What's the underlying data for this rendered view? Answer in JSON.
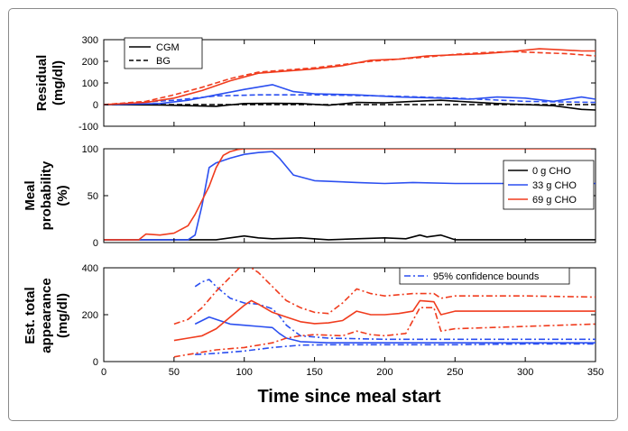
{
  "chart_data": {
    "type": "line",
    "xlabel": "Time since meal start",
    "xlim": [
      0,
      350
    ],
    "xticks": [
      0,
      50,
      100,
      150,
      200,
      250,
      300,
      350
    ],
    "panels": [
      {
        "ylabel_lines": [
          "Residual",
          "(mg/dl)"
        ],
        "ylim": [
          -100,
          300
        ],
        "yticks": [
          -100,
          0,
          100,
          200,
          300
        ],
        "legend": [
          {
            "label": "CGM",
            "style": "solid",
            "color": "#000000"
          },
          {
            "label": "BG",
            "style": "dashed",
            "color": "#000000"
          }
        ],
        "series": [
          {
            "name": "0 g CHO CGM",
            "color": "#000000",
            "style": "solid",
            "x": [
              0,
              40,
              60,
              80,
              100,
              120,
              140,
              160,
              180,
              200,
              220,
              240,
              260,
              280,
              300,
              320,
              340,
              350
            ],
            "y": [
              0,
              -2,
              -5,
              -8,
              5,
              6,
              5,
              -3,
              10,
              8,
              15,
              20,
              12,
              5,
              0,
              -5,
              -22,
              -25
            ]
          },
          {
            "name": "0 g CHO BG",
            "color": "#000000",
            "style": "dashed",
            "x": [
              0,
              50,
              100,
              150,
              200,
              250,
              300,
              350
            ],
            "y": [
              0,
              0,
              0,
              0,
              0,
              0,
              0,
              0
            ]
          },
          {
            "name": "33 g CHO CGM",
            "color": "#2b4ff0",
            "style": "solid",
            "x": [
              0,
              40,
              60,
              80,
              100,
              120,
              135,
              150,
              180,
              210,
              240,
              260,
              280,
              300,
              320,
              340,
              350
            ],
            "y": [
              0,
              5,
              20,
              45,
              70,
              92,
              60,
              50,
              45,
              35,
              30,
              25,
              35,
              30,
              15,
              35,
              25
            ]
          },
          {
            "name": "33 g CHO BG",
            "color": "#2b4ff0",
            "style": "dashed",
            "x": [
              0,
              50,
              80,
              110,
              150,
              200,
              250,
              300,
              350
            ],
            "y": [
              0,
              20,
              40,
              45,
              45,
              40,
              30,
              15,
              10
            ]
          },
          {
            "name": "69 g CHO CGM",
            "color": "#f03c1e",
            "style": "solid",
            "x": [
              0,
              30,
              50,
              70,
              90,
              110,
              130,
              150,
              170,
              190,
              210,
              230,
              250,
              270,
              290,
              310,
              320,
              340,
              350
            ],
            "y": [
              0,
              10,
              30,
              65,
              110,
              145,
              155,
              165,
              180,
              205,
              210,
              225,
              230,
              235,
              245,
              258,
              255,
              248,
              248
            ]
          },
          {
            "name": "69 g CHO BG",
            "color": "#f03c1e",
            "style": "dashed",
            "x": [
              0,
              30,
              50,
              70,
              90,
              110,
              130,
              150,
              170,
              190,
              210,
              230,
              250,
              270,
              290,
              310,
              330,
              350
            ],
            "y": [
              0,
              15,
              45,
              80,
              120,
              150,
              160,
              170,
              185,
              200,
              210,
              220,
              232,
              240,
              245,
              240,
              235,
              225
            ]
          }
        ]
      },
      {
        "ylabel_lines": [
          "Meal",
          "probability",
          "(%)"
        ],
        "ylim": [
          0,
          100
        ],
        "yticks": [
          0,
          50,
          100
        ],
        "legend": [
          {
            "label": "0 g CHO",
            "style": "solid",
            "color": "#000000"
          },
          {
            "label": "33 g CHO",
            "style": "solid",
            "color": "#2b4ff0"
          },
          {
            "label": "69 g CHO",
            "style": "solid",
            "color": "#f03c1e"
          }
        ],
        "series": [
          {
            "name": "0 g CHO",
            "color": "#000000",
            "style": "solid",
            "x": [
              0,
              60,
              80,
              90,
              100,
              110,
              120,
              140,
              160,
              180,
              200,
              215,
              225,
              230,
              240,
              250,
              280,
              350
            ],
            "y": [
              3,
              3,
              3,
              5,
              7,
              5,
              4,
              5,
              3,
              4,
              5,
              4,
              8,
              6,
              8,
              3,
              3,
              3
            ]
          },
          {
            "name": "33 g CHO",
            "color": "#2b4ff0",
            "style": "solid",
            "x": [
              0,
              60,
              65,
              70,
              75,
              80,
              90,
              100,
              110,
              120,
              125,
              135,
              150,
              180,
              200,
              220,
              250,
              300,
              350
            ],
            "y": [
              3,
              3,
              8,
              40,
              80,
              85,
              90,
              94,
              96,
              97,
              90,
              72,
              66,
              64,
              63,
              64,
              63,
              63,
              63
            ]
          },
          {
            "name": "69 g CHO",
            "color": "#f03c1e",
            "style": "solid",
            "x": [
              0,
              25,
              30,
              40,
              50,
              60,
              65,
              70,
              75,
              80,
              85,
              90,
              95,
              100,
              110,
              150,
              200,
              350
            ],
            "y": [
              3,
              3,
              9,
              8,
              10,
              18,
              30,
              45,
              60,
              80,
              93,
              97,
              99,
              100,
              100,
              100,
              100,
              100
            ]
          }
        ]
      },
      {
        "ylabel_lines": [
          "Est. total",
          "appearance",
          "(mg/dl)"
        ],
        "ylim": [
          0,
          400
        ],
        "yticks": [
          0,
          200,
          400
        ],
        "legend": [
          {
            "label": "95% confidence bounds",
            "style": "dashdot",
            "color": "#2b4ff0"
          }
        ],
        "series": [
          {
            "name": "33 g CHO estimate",
            "color": "#2b4ff0",
            "style": "solid",
            "x": [
              65,
              70,
              75,
              80,
              90,
              100,
              110,
              120,
              125,
              130,
              140,
              160,
              200,
              250,
              300,
              350
            ],
            "y": [
              160,
              175,
              190,
              180,
              160,
              155,
              150,
              145,
              120,
              100,
              85,
              80,
              80,
              80,
              80,
              80
            ]
          },
          {
            "name": "33 g CHO upper bound",
            "color": "#2b4ff0",
            "style": "dashdot",
            "x": [
              65,
              70,
              75,
              80,
              90,
              100,
              110,
              120,
              125,
              130,
              140,
              160,
              200,
              250,
              300,
              350
            ],
            "y": [
              320,
              340,
              350,
              320,
              270,
              250,
              245,
              225,
              195,
              155,
              110,
              100,
              95,
              95,
              95,
              95
            ]
          },
          {
            "name": "33 g CHO lower bound",
            "color": "#2b4ff0",
            "style": "dashdot",
            "x": [
              65,
              80,
              100,
              120,
              140,
              160,
              200,
              250,
              300,
              350
            ],
            "y": [
              30,
              35,
              45,
              60,
              70,
              72,
              72,
              72,
              75,
              75
            ]
          },
          {
            "name": "69 g CHO estimate",
            "color": "#f03c1e",
            "style": "solid",
            "x": [
              50,
              60,
              70,
              80,
              90,
              100,
              105,
              110,
              120,
              130,
              140,
              150,
              160,
              170,
              180,
              190,
              200,
              210,
              220,
              225,
              235,
              240,
              250,
              300,
              350
            ],
            "y": [
              90,
              100,
              110,
              140,
              190,
              240,
              260,
              245,
              210,
              190,
              170,
              162,
              165,
              175,
              215,
              200,
              200,
              205,
              215,
              260,
              255,
              200,
              215,
              215,
              215
            ]
          },
          {
            "name": "69 g CHO upper bound",
            "color": "#f03c1e",
            "style": "dashdot",
            "x": [
              50,
              60,
              70,
              80,
              90,
              100,
              110,
              120,
              130,
              140,
              150,
              160,
              170,
              180,
              190,
              200,
              220,
              235,
              240,
              250,
              300,
              350
            ],
            "y": [
              160,
              180,
              230,
              300,
              360,
              420,
              380,
              320,
              260,
              230,
              210,
              205,
              250,
              310,
              290,
              280,
              290,
              290,
              270,
              280,
              280,
              275
            ]
          },
          {
            "name": "69 g CHO lower bound",
            "color": "#f03c1e",
            "style": "dashdot",
            "x": [
              50,
              60,
              70,
              80,
              90,
              100,
              110,
              120,
              130,
              140,
              150,
              170,
              180,
              190,
              200,
              215,
              225,
              235,
              240,
              250,
              300,
              350
            ],
            "y": [
              20,
              30,
              40,
              50,
              55,
              60,
              70,
              80,
              100,
              110,
              115,
              110,
              130,
              115,
              110,
              120,
              230,
              230,
              130,
              140,
              150,
              160
            ]
          }
        ]
      }
    ]
  }
}
